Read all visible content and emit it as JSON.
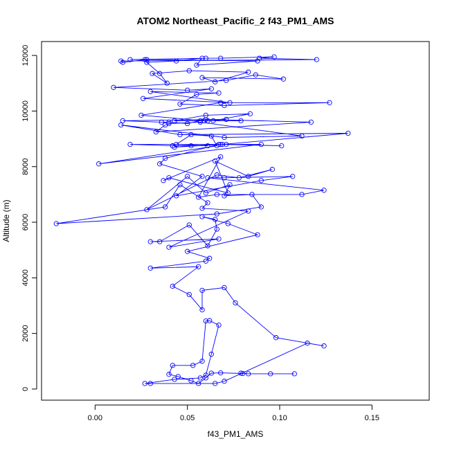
{
  "chart_data": {
    "type": "line",
    "title": "ATOM2 Northeast_Pacific_2 f43_PM1_AMS",
    "xlabel": "f43_PM1_AMS",
    "ylabel": "Altitude (m)",
    "xlim": [
      -0.029,
      0.181
    ],
    "ylim": [
      -400,
      12500
    ],
    "xticks": [
      0.0,
      0.05,
      0.1,
      0.15
    ],
    "xtick_labels": [
      "0.00",
      "0.05",
      "0.10",
      "0.15"
    ],
    "yticks": [
      0,
      2000,
      4000,
      6000,
      8000,
      10000,
      12000
    ],
    "ytick_labels": [
      "0",
      "2000",
      "4000",
      "6000",
      "8000",
      "10000",
      "12000"
    ],
    "grid": false,
    "legend": "none",
    "marker": "open-circle",
    "series": [
      {
        "color": "#0000ff",
        "x": [
          0.108,
          0.095,
          0.083,
          0.079,
          0.08,
          0.068,
          0.063,
          0.06,
          0.056,
          0.052,
          0.045,
          0.04,
          0.042,
          0.053,
          0.058,
          0.06,
          0.062,
          0.067,
          0.063,
          0.06,
          0.057,
          0.043,
          0.027,
          0.03,
          0.065,
          0.07,
          0.115,
          0.124,
          0.098,
          0.076,
          0.07,
          0.058,
          0.058,
          0.051,
          0.042,
          0.056,
          0.03,
          0.06,
          0.062,
          0.05,
          0.088,
          0.072,
          0.058,
          0.065,
          0.066,
          0.061,
          0.051,
          0.035,
          0.03,
          0.067,
          0.04,
          0.083,
          0.058,
          0.061,
          0.046,
          0.038,
          -0.021,
          0.066,
          0.09,
          0.085,
          0.07,
          0.073,
          0.06,
          0.05,
          0.028,
          0.066,
          0.078,
          0.096,
          0.083,
          0.065,
          0.072,
          0.04,
          0.037,
          0.068,
          0.056,
          0.066,
          0.112,
          0.124,
          0.061,
          0.07,
          0.107,
          0.09,
          0.044,
          0.058,
          0.035,
          0.038,
          0.067,
          0.09,
          0.002,
          0.066,
          0.063,
          0.052,
          0.044,
          0.061,
          0.042,
          0.019,
          0.071,
          0.101,
          0.068,
          0.052,
          0.043,
          0.069,
          0.137,
          0.046,
          0.014,
          0.07,
          0.112,
          0.057,
          0.04,
          0.038,
          0.033,
          0.117,
          0.06,
          0.05,
          0.04,
          0.036,
          0.015,
          0.071,
          0.064,
          0.084,
          0.06,
          0.043,
          0.061,
          0.079,
          0.057,
          0.059,
          0.025,
          0.068,
          0.127,
          0.07,
          0.046,
          0.055,
          0.067,
          0.03,
          0.073,
          0.026,
          0.063,
          0.05,
          0.01,
          0.071,
          0.087,
          0.102,
          0.058,
          0.065,
          0.083,
          0.051,
          0.031,
          0.039,
          0.035,
          0.028,
          0.044,
          0.058,
          0.055,
          0.088,
          0.028,
          0.015,
          0.014,
          0.12,
          0.089,
          0.097,
          0.068,
          0.06,
          0.019,
          0.027
        ],
        "y": [
          550,
          550,
          550,
          570,
          560,
          580,
          570,
          400,
          200,
          300,
          450,
          530,
          850,
          850,
          1000,
          2450,
          2460,
          2300,
          1250,
          500,
          400,
          350,
          200,
          200,
          200,
          280,
          1650,
          1550,
          1850,
          3100,
          3650,
          3550,
          2850,
          3400,
          3700,
          4400,
          4350,
          4600,
          4700,
          4950,
          5550,
          5950,
          6200,
          6100,
          5750,
          5150,
          5900,
          5300,
          5300,
          5400,
          5100,
          6400,
          6500,
          6700,
          7350,
          6550,
          5950,
          6300,
          6550,
          7000,
          6950,
          7350,
          7050,
          7650,
          6450,
          7700,
          7600,
          7900,
          7650,
          8200,
          7050,
          7600,
          7500,
          8350,
          6900,
          7000,
          7000,
          7150,
          7600,
          7600,
          7650,
          7500,
          6950,
          7650,
          8100,
          8300,
          8800,
          8800,
          8100,
          8750,
          9100,
          9150,
          8800,
          8750,
          8750,
          8800,
          8800,
          8750,
          8800,
          8750,
          8700,
          8800,
          9200,
          9150,
          9500,
          9050,
          9100,
          9600,
          9550,
          9500,
          9250,
          9600,
          9700,
          9550,
          9600,
          9600,
          9650,
          9700,
          9650,
          9900,
          9850,
          9650,
          9650,
          9650,
          9650,
          9650,
          9850,
          10300,
          10300,
          10200,
          10250,
          10600,
          10650,
          10700,
          10300,
          10450,
          10800,
          10750,
          10850,
          11100,
          11300,
          11150,
          11200,
          11050,
          11400,
          11450,
          11350,
          11000,
          11350,
          11750,
          11800,
          11900,
          11650,
          11800,
          11850,
          11750,
          11800,
          11850,
          11900,
          11950,
          11900,
          11900,
          11850,
          11850
        ]
      }
    ]
  }
}
